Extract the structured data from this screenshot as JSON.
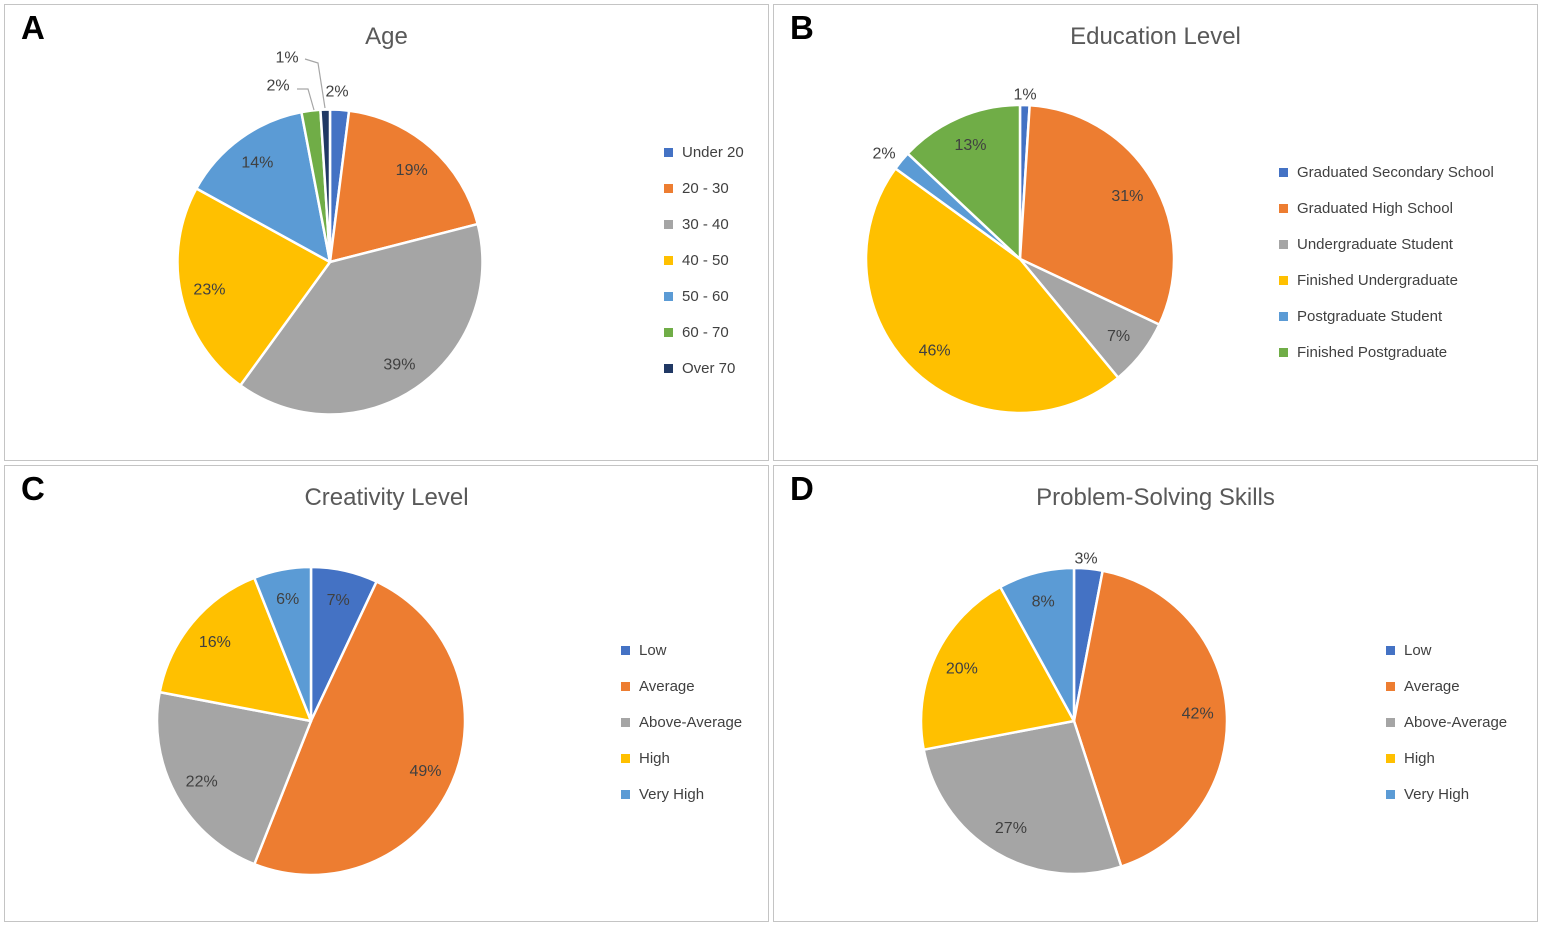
{
  "figure": {
    "panel_letters": [
      "A",
      "B",
      "C",
      "D"
    ]
  },
  "chart_data": [
    {
      "type": "pie",
      "panel_letter": "A",
      "title": "Age",
      "legend_position": "right",
      "categories": [
        "Under 20",
        "20 - 30",
        "30 - 40",
        "40 - 50",
        "50 - 60",
        "60 - 70",
        "Over 70"
      ],
      "values": [
        2,
        19,
        39,
        23,
        14,
        2,
        1
      ],
      "labels": [
        "2%",
        "19%",
        "39%",
        "23%",
        "14%",
        "2%",
        "1%"
      ],
      "colors": [
        "#4472C4",
        "#ED7D31",
        "#A5A5A5",
        "#FFC000",
        "#5B9BD5",
        "#70AD47",
        "#203864"
      ],
      "label_placement": [
        "outside",
        "inside",
        "inside",
        "inside",
        "inside",
        "outside",
        "outside"
      ],
      "label_radius": 0.81,
      "outside_label_offsets": {
        "0": [
          7,
          -171
        ],
        "5": [
          -52,
          -177
        ],
        "6": [
          -43,
          -205
        ]
      },
      "leader_lines": [
        {
          "slice": 5,
          "points": [
            [
              -33,
              -173
            ],
            [
              -22,
              -173
            ],
            [
              -16,
              -152
            ]
          ]
        },
        {
          "slice": 6,
          "points": [
            [
              -25,
              -203
            ],
            [
              -12,
              -199
            ],
            [
              -5,
              -154
            ]
          ]
        }
      ]
    },
    {
      "type": "pie",
      "panel_letter": "B",
      "title": "Education Level",
      "legend_position": "right",
      "categories": [
        "Graduated Secondary School",
        "Graduated High School",
        "Undergraduate Student",
        "Finished Undergraduate",
        "Postgraduate Student",
        "Finished Postgraduate"
      ],
      "values": [
        1,
        31,
        7,
        46,
        2,
        13
      ],
      "labels": [
        "1%",
        "31%",
        "7%",
        "46%",
        "2%",
        "13%"
      ],
      "colors": [
        "#4472C4",
        "#ED7D31",
        "#A5A5A5",
        "#FFC000",
        "#5B9BD5",
        "#70AD47"
      ],
      "label_placement": [
        "outside",
        "inside",
        "inside",
        "inside",
        "outside",
        "inside"
      ],
      "label_radius": 0.81,
      "outside_label_offsets": {
        "0": [
          5,
          -165
        ],
        "4": [
          -136,
          -106
        ]
      },
      "leader_lines": []
    },
    {
      "type": "pie",
      "panel_letter": "C",
      "title": "Creativity Level",
      "legend_position": "right",
      "categories": [
        "Low",
        "Average",
        "Above-Average",
        "High",
        "Very High"
      ],
      "values": [
        7,
        49,
        22,
        16,
        6
      ],
      "labels": [
        "7%",
        "49%",
        "22%",
        "16%",
        "6%"
      ],
      "colors": [
        "#4472C4",
        "#ED7D31",
        "#A5A5A5",
        "#FFC000",
        "#5B9BD5"
      ],
      "label_placement": [
        "inside",
        "inside",
        "inside",
        "inside",
        "inside"
      ],
      "label_radius": 0.81,
      "outside_label_offsets": {},
      "leader_lines": []
    },
    {
      "type": "pie",
      "panel_letter": "D",
      "title": "Problem-Solving Skills",
      "legend_position": "right",
      "categories": [
        "Low",
        "Average",
        "Above-Average",
        "High",
        "Very High"
      ],
      "values": [
        3,
        42,
        27,
        20,
        8
      ],
      "labels": [
        "3%",
        "42%",
        "27%",
        "20%",
        "8%"
      ],
      "colors": [
        "#4472C4",
        "#ED7D31",
        "#A5A5A5",
        "#FFC000",
        "#5B9BD5"
      ],
      "label_placement": [
        "outside",
        "inside",
        "inside",
        "inside",
        "inside"
      ],
      "label_radius": 0.81,
      "outside_label_offsets": {
        "0": [
          12,
          -163
        ]
      },
      "leader_lines": []
    }
  ],
  "style_tokens": {
    "slice_border_color": "#FFFFFF",
    "leader_line_color": "#A6A6A6",
    "title_color": "#595959",
    "label_color": "#404040",
    "panel_border_color": "#C4C4C4"
  }
}
